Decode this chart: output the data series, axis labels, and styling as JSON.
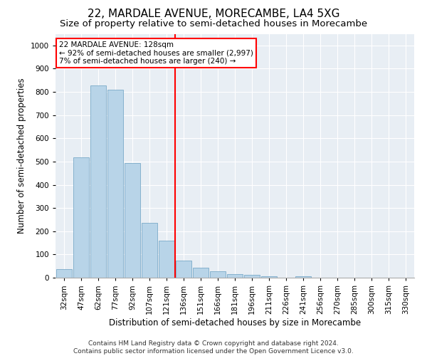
{
  "title": "22, MARDALE AVENUE, MORECAMBE, LA4 5XG",
  "subtitle": "Size of property relative to semi-detached houses in Morecambe",
  "xlabel": "Distribution of semi-detached houses by size in Morecambe",
  "ylabel": "Number of semi-detached properties",
  "footer1": "Contains HM Land Registry data © Crown copyright and database right 2024.",
  "footer2": "Contains public sector information licensed under the Open Government Licence v3.0.",
  "categories": [
    "32sqm",
    "47sqm",
    "62sqm",
    "77sqm",
    "92sqm",
    "107sqm",
    "121sqm",
    "136sqm",
    "151sqm",
    "166sqm",
    "181sqm",
    "196sqm",
    "211sqm",
    "226sqm",
    "241sqm",
    "256sqm",
    "270sqm",
    "285sqm",
    "300sqm",
    "315sqm",
    "330sqm"
  ],
  "values": [
    38,
    517,
    828,
    810,
    493,
    235,
    160,
    75,
    42,
    28,
    15,
    13,
    5,
    0,
    7,
    0,
    0,
    0,
    0,
    0,
    0
  ],
  "bar_color": "#b8d4e8",
  "bar_edge_color": "#7aaac8",
  "vline_x": 6.5,
  "vline_color": "red",
  "annotation_text": "22 MARDALE AVENUE: 128sqm\n← 92% of semi-detached houses are smaller (2,997)\n7% of semi-detached houses are larger (240) →",
  "annotation_box_color": "white",
  "annotation_box_edge": "red",
  "ylim": [
    0,
    1050
  ],
  "yticks": [
    0,
    100,
    200,
    300,
    400,
    500,
    600,
    700,
    800,
    900,
    1000
  ],
  "plot_bg_color": "#e8eef4",
  "fig_bg_color": "white",
  "grid_color": "#ffffff",
  "title_fontsize": 11,
  "subtitle_fontsize": 9.5,
  "axis_label_fontsize": 8.5,
  "tick_fontsize": 7.5,
  "annot_fontsize": 7.5,
  "footer_fontsize": 6.5
}
